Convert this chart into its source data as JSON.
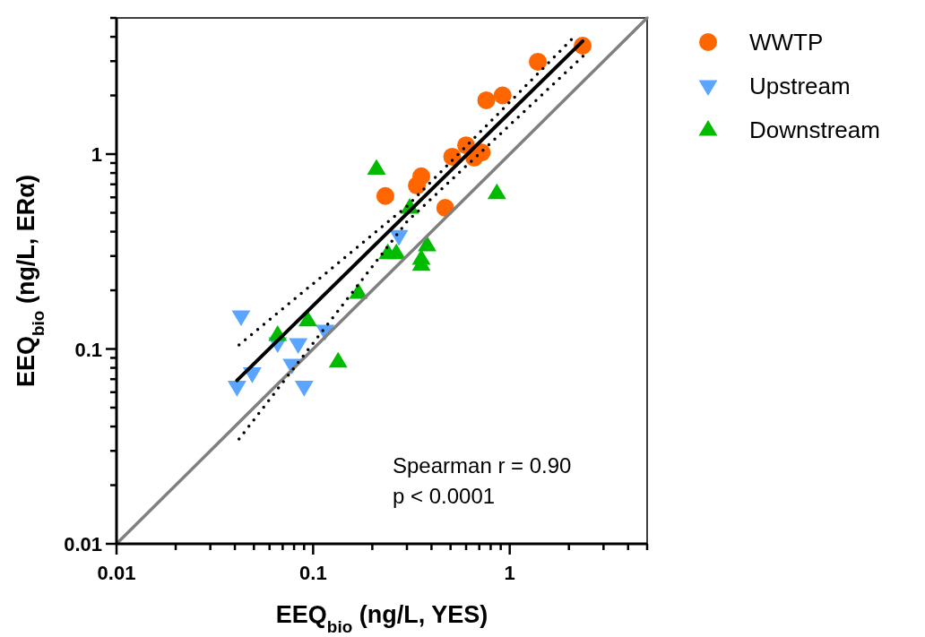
{
  "chart_data": {
    "type": "scatter",
    "xlabel": "EEQ$_{bio}$ (ng/L, YES)",
    "ylabel": "EEQ$_{bio}$ (ng/L, ERα)",
    "log": "xy",
    "xlim": [
      0.01,
      5
    ],
    "ylim": [
      0.01,
      5
    ],
    "xticks": [
      0.01,
      {
        "value": 0.02,
        "label": null
      },
      {
        "value": 0.03,
        "label": null
      },
      {
        "value": 0.04,
        "label": null
      },
      {
        "value": 0.05,
        "label": null
      },
      {
        "value": 0.06,
        "label": null
      },
      {
        "value": 0.07,
        "label": null
      },
      {
        "value": 0.08,
        "label": null
      },
      {
        "value": 0.09,
        "label": null
      },
      0.1,
      {
        "value": 0.2,
        "label": null
      },
      {
        "value": 0.3,
        "label": null
      },
      {
        "value": 0.4,
        "label": null
      },
      {
        "value": 0.5,
        "label": null
      },
      {
        "value": 0.6,
        "label": null
      },
      {
        "value": 0.7,
        "label": null
      },
      {
        "value": 0.8,
        "label": null
      },
      {
        "value": 0.9,
        "label": null
      },
      1,
      {
        "value": 2,
        "label": null
      },
      {
        "value": 3,
        "label": null
      },
      {
        "value": 4,
        "label": null
      },
      {
        "value": 5,
        "label": null
      }
    ],
    "yticks": [
      0.01,
      {
        "value": 0.02,
        "label": null
      },
      {
        "value": 0.03,
        "label": null
      },
      {
        "value": 0.04,
        "label": null
      },
      {
        "value": 0.05,
        "label": null
      },
      {
        "value": 0.06,
        "label": null
      },
      {
        "value": 0.07,
        "label": null
      },
      {
        "value": 0.08,
        "label": null
      },
      {
        "value": 0.09,
        "label": null
      },
      0.1,
      {
        "value": 0.2,
        "label": null
      },
      {
        "value": 0.3,
        "label": null
      },
      {
        "value": 0.4,
        "label": null
      },
      {
        "value": 0.5,
        "label": null
      },
      {
        "value": 0.6,
        "label": null
      },
      {
        "value": 0.7,
        "label": null
      },
      {
        "value": 0.8,
        "label": null
      },
      {
        "value": 0.9,
        "label": null
      },
      1,
      {
        "value": 2,
        "label": null
      },
      {
        "value": 3,
        "label": null
      },
      {
        "value": 4,
        "label": null
      },
      {
        "value": 5,
        "label": null
      }
    ],
    "grid": false,
    "legend": "top right",
    "annotations": [
      "Spearman r = 0.90",
      "p < 0.0001"
    ],
    "series": [
      {
        "type": "line",
        "color": "#808080",
        "marker": "none",
        "line_style": "solid",
        "x": [
          0.01,
          5
        ],
        "values": [
          0.01,
          5
        ]
      },
      {
        "type": "line",
        "color": "#000000",
        "marker": "none",
        "line_style": "dotted",
        "x": [
          0.042,
          0.3,
          2.18
        ],
        "values": [
          0.105,
          0.54,
          4.1
        ]
      },
      {
        "type": "line",
        "color": "#000000",
        "marker": "none",
        "line_style": "dotted",
        "x": [
          0.042,
          0.3,
          2.43
        ],
        "values": [
          0.0345,
          0.45,
          3.27
        ]
      },
      {
        "type": "line",
        "color": "#000000",
        "marker": "none",
        "line_style": "solid",
        "x": [
          0.041,
          2.35
        ],
        "values": [
          0.069,
          3.8
        ]
      },
      {
        "name": "WWTP",
        "color": "#ff6600",
        "marker": "circle",
        "x": [
          2.35,
          1.39,
          0.76,
          0.92,
          0.6,
          0.72,
          0.66,
          0.51,
          0.355,
          0.337,
          0.233,
          0.47
        ],
        "values": [
          3.6,
          2.98,
          1.89,
          2.0,
          1.11,
          1.02,
          0.96,
          0.97,
          0.77,
          0.69,
          0.61,
          0.53
        ]
      },
      {
        "name": "Upstream",
        "color": "#5aa5ff",
        "marker": "triangle-down",
        "x": [
          0.043,
          0.066,
          0.084,
          0.115,
          0.078,
          0.049,
          0.041,
          0.09,
          0.273
        ],
        "values": [
          0.147,
          0.107,
          0.106,
          0.124,
          0.083,
          0.075,
          0.064,
          0.064,
          0.38
        ]
      },
      {
        "name": "Downstream",
        "color": "#00bb00",
        "marker": "triangle",
        "x": [
          0.066,
          0.094,
          0.17,
          0.134,
          0.21,
          0.31,
          0.86,
          0.24,
          0.265,
          0.38,
          0.355,
          0.355
        ],
        "values": [
          0.118,
          0.14,
          0.194,
          0.086,
          0.84,
          0.53,
          0.63,
          0.31,
          0.31,
          0.34,
          0.29,
          0.27
        ]
      }
    ]
  }
}
